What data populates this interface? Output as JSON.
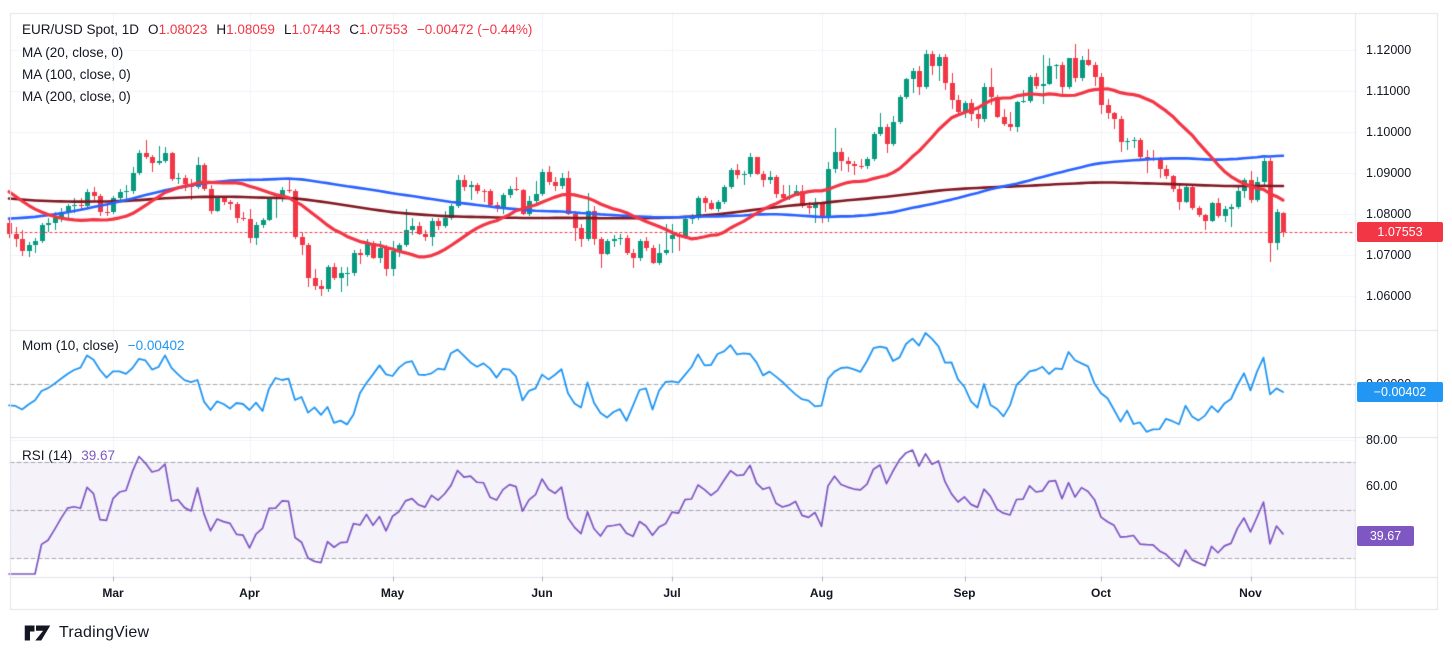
{
  "legend": {
    "title": "EUR/USD Spot, 1D",
    "ohlc": [
      {
        "k": "O",
        "v": "1.08023"
      },
      {
        "k": "H",
        "v": "1.08059"
      },
      {
        "k": "L",
        "v": "1.07443"
      },
      {
        "k": "C",
        "v": "1.07553"
      }
    ],
    "change": "−0.00472 (−0.44%)",
    "ma_rows": [
      "MA (20, close, 0)",
      "MA (100, close, 0)",
      "MA (200, close, 0)"
    ]
  },
  "mom_pane": {
    "label": "Mom (10, close)",
    "value": "−0.00402",
    "axis_zero_label": "0.00000",
    "badge": "−0.00402"
  },
  "rsi_pane": {
    "label": "RSI (14)",
    "value": "39.67",
    "badge": "39.67",
    "axis_labels": [
      {
        "text": "80.00",
        "value": 80
      },
      {
        "text": "60.00",
        "value": 60
      }
    ]
  },
  "price_axis": {
    "labels": [
      {
        "text": "1.12000",
        "value": 1.12
      },
      {
        "text": "1.11000",
        "value": 1.11
      },
      {
        "text": "1.10000",
        "value": 1.1
      },
      {
        "text": "1.09000",
        "value": 1.09
      },
      {
        "text": "1.08000",
        "value": 1.08
      },
      {
        "text": "1.07000",
        "value": 1.07
      },
      {
        "text": "1.06000",
        "value": 1.06
      }
    ],
    "last_price_badge": "1.07553",
    "last_price": 1.07553
  },
  "time_axis": {
    "months": [
      {
        "label": "Mar",
        "index": 16
      },
      {
        "label": "Apr",
        "index": 37
      },
      {
        "label": "May",
        "index": 59
      },
      {
        "label": "Jun",
        "index": 82
      },
      {
        "label": "Jul",
        "index": 102
      },
      {
        "label": "Aug",
        "index": 125
      },
      {
        "label": "Sep",
        "index": 147
      },
      {
        "label": "Oct",
        "index": 168
      },
      {
        "label": "Nov",
        "index": 191
      }
    ]
  },
  "watermark": {
    "text": "TradingView"
  },
  "colors": {
    "up": "#089981",
    "down": "#f23645",
    "ma20": "#f23645",
    "ma100": "#2962ff",
    "ma200": "#801922",
    "mom": "#2196f3",
    "rsi": "#7e57c2",
    "rsi_band": "rgba(126,87,194,0.08)",
    "grid": "#f0f3fa",
    "border": "#e0e3eb",
    "dashed": "#787b86",
    "text": "#131722",
    "badge_price": "#f23645",
    "badge_mom": "#2196f3",
    "badge_rsi": "#7e57c2"
  },
  "chart_data": {
    "type": "candlestick",
    "symbol": "EUR/USD Spot",
    "interval": "1D",
    "last_bar": {
      "open": 1.08023,
      "high": 1.08059,
      "low": 1.07443,
      "close": 1.07553,
      "change": -0.00472,
      "change_pct": -0.44
    },
    "indicators": {
      "sma_periods": [
        20,
        100,
        200
      ],
      "momentum_period": 10,
      "rsi_period": 14
    },
    "rsi_guides": [
      70,
      50,
      30
    ],
    "rsi_gridlines": [
      80,
      60,
      40
    ],
    "price_gridlines": [
      1.06,
      1.07,
      1.08,
      1.09,
      1.1,
      1.11,
      1.12
    ],
    "seed_anchors": [
      {
        "c": 1.1,
        "d": 0
      },
      {
        "c": 1.07,
        "d": 21
      },
      {
        "c": 1.091,
        "d": 21
      },
      {
        "c": 1.122,
        "d": 12
      },
      {
        "c": 1.0995,
        "d": 9
      },
      {
        "c": 1.084,
        "d": 22
      },
      {
        "c": 1.0575,
        "d": 21
      },
      {
        "c": 1.048,
        "d": 10
      },
      {
        "c": 1.06,
        "d": 12
      },
      {
        "c": 1.089,
        "d": 21
      },
      {
        "c": 1.106,
        "d": 22
      },
      {
        "c": 1.0816,
        "d": 23
      },
      {
        "c": 1.077,
        "d": 5
      }
    ],
    "candles": [
      [
        1.0778,
        1.0792,
        1.0742,
        1.0752
      ],
      [
        1.0752,
        1.0768,
        1.072,
        1.0738
      ],
      [
        1.0738,
        1.0762,
        1.0698,
        1.071
      ],
      [
        1.071,
        1.0731,
        1.0695,
        1.0724
      ],
      [
        1.0724,
        1.0742,
        1.0705,
        1.0735
      ],
      [
        1.0735,
        1.0777,
        1.073,
        1.0772
      ],
      [
        1.0772,
        1.079,
        1.0755,
        1.0777
      ],
      [
        1.0777,
        1.0805,
        1.0762,
        1.079
      ],
      [
        1.079,
        1.0815,
        1.078,
        1.0805
      ],
      [
        1.0805,
        1.0825,
        1.079,
        1.082
      ],
      [
        1.082,
        1.0839,
        1.0803,
        1.0822
      ],
      [
        1.0822,
        1.084,
        1.081,
        1.082
      ],
      [
        1.082,
        1.086,
        1.0815,
        1.0853
      ],
      [
        1.0853,
        1.0866,
        1.083,
        1.0845
      ],
      [
        1.0845,
        1.085,
        1.0795,
        1.0805
      ],
      [
        1.0805,
        1.0826,
        1.0796,
        1.0804
      ],
      [
        1.0804,
        1.0845,
        1.08,
        1.084
      ],
      [
        1.084,
        1.086,
        1.0832,
        1.0853
      ],
      [
        1.0853,
        1.087,
        1.0837,
        1.0856
      ],
      [
        1.0856,
        1.0915,
        1.085,
        1.09
      ],
      [
        1.09,
        1.0956,
        1.0895,
        1.0948
      ],
      [
        1.0948,
        1.0981,
        1.0935,
        1.0938
      ],
      [
        1.0938,
        1.0945,
        1.0903,
        1.0925
      ],
      [
        1.0925,
        1.0965,
        1.092,
        1.093
      ],
      [
        1.093,
        1.0964,
        1.0925,
        1.0948
      ],
      [
        1.0948,
        1.0952,
        1.088,
        1.0885
      ],
      [
        1.0885,
        1.09,
        1.0872,
        1.0888
      ],
      [
        1.0888,
        1.0895,
        1.0856,
        1.0872
      ],
      [
        1.0872,
        1.0885,
        1.0835,
        1.0865
      ],
      [
        1.0865,
        1.094,
        1.086,
        1.092
      ],
      [
        1.092,
        1.0925,
        1.0855,
        1.086
      ],
      [
        1.086,
        1.087,
        1.08,
        1.0808
      ],
      [
        1.0808,
        1.0845,
        1.0805,
        1.0838
      ],
      [
        1.0838,
        1.0842,
        1.0823,
        1.083
      ],
      [
        1.083,
        1.0835,
        1.081,
        1.0825
      ],
      [
        1.0825,
        1.083,
        1.0778,
        1.079
      ],
      [
        1.079,
        1.0805,
        1.0783,
        1.0788
      ],
      [
        1.0788,
        1.0812,
        1.073,
        1.0742
      ],
      [
        1.0742,
        1.078,
        1.0725,
        1.0772
      ],
      [
        1.0772,
        1.079,
        1.0765,
        1.0785
      ],
      [
        1.0785,
        1.084,
        1.0783,
        1.0837
      ],
      [
        1.0837,
        1.0845,
        1.079,
        1.0838
      ],
      [
        1.0838,
        1.0865,
        1.083,
        1.0858
      ],
      [
        1.0858,
        1.0885,
        1.0852,
        1.0857
      ],
      [
        1.0857,
        1.086,
        1.074,
        1.0745
      ],
      [
        1.0745,
        1.0755,
        1.0699,
        1.0725
      ],
      [
        1.0725,
        1.073,
        1.0622,
        1.0645
      ],
      [
        1.0645,
        1.0665,
        1.0615,
        1.0625
      ],
      [
        1.0625,
        1.064,
        1.0601,
        1.0618
      ],
      [
        1.0618,
        1.0675,
        1.061,
        1.067
      ],
      [
        1.067,
        1.068,
        1.064,
        1.0643
      ],
      [
        1.0643,
        1.067,
        1.061,
        1.0655
      ],
      [
        1.0655,
        1.067,
        1.0624,
        1.0656
      ],
      [
        1.0656,
        1.0711,
        1.065,
        1.0705
      ],
      [
        1.0705,
        1.0715,
        1.0678,
        1.07
      ],
      [
        1.07,
        1.074,
        1.0695,
        1.073
      ],
      [
        1.073,
        1.0735,
        1.069,
        1.0693
      ],
      [
        1.0693,
        1.0735,
        1.068,
        1.0718
      ],
      [
        1.0718,
        1.0725,
        1.065,
        1.0666
      ],
      [
        1.0666,
        1.0735,
        1.065,
        1.071
      ],
      [
        1.071,
        1.073,
        1.0695,
        1.0725
      ],
      [
        1.0725,
        1.0812,
        1.072,
        1.0762
      ],
      [
        1.0762,
        1.079,
        1.075,
        1.077
      ],
      [
        1.077,
        1.078,
        1.0748,
        1.0752
      ],
      [
        1.0752,
        1.076,
        1.0735,
        1.0745
      ],
      [
        1.0745,
        1.079,
        1.0723,
        1.0783
      ],
      [
        1.0783,
        1.079,
        1.076,
        1.077
      ],
      [
        1.077,
        1.0807,
        1.0765,
        1.079
      ],
      [
        1.079,
        1.0825,
        1.0785,
        1.082
      ],
      [
        1.082,
        1.0895,
        1.0815,
        1.0882
      ],
      [
        1.0882,
        1.0895,
        1.0855,
        1.0866
      ],
      [
        1.0866,
        1.088,
        1.0835,
        1.087
      ],
      [
        1.087,
        1.0875,
        1.085,
        1.0856
      ],
      [
        1.0856,
        1.086,
        1.083,
        1.0855
      ],
      [
        1.0855,
        1.086,
        1.0815,
        1.0822
      ],
      [
        1.0822,
        1.083,
        1.0805,
        1.0815
      ],
      [
        1.0815,
        1.0852,
        1.08,
        1.0846
      ],
      [
        1.0846,
        1.0868,
        1.084,
        1.0862
      ],
      [
        1.0862,
        1.089,
        1.0855,
        1.0858
      ],
      [
        1.0858,
        1.086,
        1.0798,
        1.08
      ],
      [
        1.08,
        1.0845,
        1.0795,
        1.0832
      ],
      [
        1.0832,
        1.088,
        1.0825,
        1.0848
      ],
      [
        1.0848,
        1.091,
        1.0845,
        1.0903
      ],
      [
        1.0903,
        1.0916,
        1.087,
        1.0878
      ],
      [
        1.0878,
        1.089,
        1.0855,
        1.0868
      ],
      [
        1.0868,
        1.09,
        1.086,
        1.0889
      ],
      [
        1.0889,
        1.0905,
        1.0798,
        1.08
      ],
      [
        1.08,
        1.0808,
        1.0733,
        1.0765
      ],
      [
        1.0765,
        1.0775,
        1.0719,
        1.074
      ],
      [
        1.074,
        1.0852,
        1.0735,
        1.0808
      ],
      [
        1.0808,
        1.082,
        1.0725,
        1.0738
      ],
      [
        1.0738,
        1.0745,
        1.0668,
        1.0703
      ],
      [
        1.0703,
        1.074,
        1.07,
        1.0735
      ],
      [
        1.0735,
        1.075,
        1.072,
        1.0738
      ],
      [
        1.0738,
        1.0752,
        1.0725,
        1.0742
      ],
      [
        1.0742,
        1.075,
        1.07,
        1.0705
      ],
      [
        1.0705,
        1.0715,
        1.0668,
        1.0692
      ],
      [
        1.0692,
        1.074,
        1.0685,
        1.0735
      ],
      [
        1.0735,
        1.0745,
        1.071,
        1.0718
      ],
      [
        1.0718,
        1.0725,
        1.0677,
        1.068
      ],
      [
        1.068,
        1.0726,
        1.0675,
        1.0704
      ],
      [
        1.0704,
        1.0775,
        1.07,
        1.0713
      ],
      [
        1.074,
        1.0776,
        1.0705,
        1.0748
      ],
      [
        1.0748,
        1.0755,
        1.071,
        1.0745
      ],
      [
        1.0745,
        1.0795,
        1.074,
        1.0788
      ],
      [
        1.0788,
        1.08,
        1.0775,
        1.079
      ],
      [
        1.079,
        1.0845,
        1.0785,
        1.084
      ],
      [
        1.084,
        1.0845,
        1.0805,
        1.0828
      ],
      [
        1.0828,
        1.0835,
        1.081,
        1.0813
      ],
      [
        1.0813,
        1.0835,
        1.0805,
        1.083
      ],
      [
        1.083,
        1.087,
        1.0825,
        1.0867
      ],
      [
        1.0867,
        1.0911,
        1.086,
        1.0907
      ],
      [
        1.0907,
        1.0922,
        1.0885,
        1.0896
      ],
      [
        1.0896,
        1.0905,
        1.087,
        1.0898
      ],
      [
        1.0898,
        1.0948,
        1.089,
        1.0938
      ],
      [
        1.0938,
        1.094,
        1.0895,
        1.0898
      ],
      [
        1.0898,
        1.0905,
        1.0865,
        1.0883
      ],
      [
        1.0883,
        1.0905,
        1.0872,
        1.089
      ],
      [
        1.089,
        1.0895,
        1.084,
        1.085
      ],
      [
        1.085,
        1.087,
        1.0837,
        1.084
      ],
      [
        1.084,
        1.087,
        1.0835,
        1.0845
      ],
      [
        1.0845,
        1.087,
        1.0843,
        1.0855
      ],
      [
        1.0855,
        1.087,
        1.0815,
        1.082
      ],
      [
        1.082,
        1.083,
        1.08,
        1.0815
      ],
      [
        1.0815,
        1.084,
        1.0777,
        1.0826
      ],
      [
        1.0826,
        1.083,
        1.0777,
        1.079
      ],
      [
        1.079,
        1.0927,
        1.078,
        1.091
      ],
      [
        1.091,
        1.1009,
        1.09,
        1.0952
      ],
      [
        1.0952,
        1.096,
        1.0905,
        1.093
      ],
      [
        1.093,
        1.094,
        1.0903,
        1.0923
      ],
      [
        1.0923,
        1.093,
        1.0895,
        1.0918
      ],
      [
        1.0918,
        1.0935,
        1.091,
        1.0916
      ],
      [
        1.0916,
        1.094,
        1.091,
        1.0935
      ],
      [
        1.0935,
        1.1,
        1.093,
        1.0994
      ],
      [
        1.0994,
        1.1047,
        1.099,
        1.1013
      ],
      [
        1.1013,
        1.102,
        1.095,
        1.097
      ],
      [
        1.097,
        1.104,
        1.0965,
        1.1025
      ],
      [
        1.1025,
        1.109,
        1.102,
        1.1085
      ],
      [
        1.1085,
        1.1132,
        1.108,
        1.113
      ],
      [
        1.113,
        1.1155,
        1.1095,
        1.115
      ],
      [
        1.115,
        1.116,
        1.109,
        1.111
      ],
      [
        1.111,
        1.1201,
        1.1105,
        1.119
      ],
      [
        1.119,
        1.1198,
        1.114,
        1.1161
      ],
      [
        1.1161,
        1.119,
        1.1125,
        1.1182
      ],
      [
        1.1182,
        1.119,
        1.1103,
        1.112
      ],
      [
        1.112,
        1.1145,
        1.1055,
        1.1078
      ],
      [
        1.1078,
        1.109,
        1.1042,
        1.1048
      ],
      [
        1.1048,
        1.1075,
        1.1035,
        1.107
      ],
      [
        1.107,
        1.108,
        1.1026,
        1.1043
      ],
      [
        1.1043,
        1.1055,
        1.101,
        1.1032
      ],
      [
        1.1032,
        1.112,
        1.1025,
        1.111
      ],
      [
        1.111,
        1.1155,
        1.1065,
        1.1085
      ],
      [
        1.1085,
        1.109,
        1.1035,
        1.1036
      ],
      [
        1.1036,
        1.1055,
        1.1015,
        1.102
      ],
      [
        1.102,
        1.105,
        1.1002,
        1.1013
      ],
      [
        1.1013,
        1.1075,
        1.1,
        1.1073
      ],
      [
        1.1073,
        1.1102,
        1.107,
        1.1075
      ],
      [
        1.1075,
        1.1138,
        1.107,
        1.1133
      ],
      [
        1.1133,
        1.1145,
        1.1105,
        1.1113
      ],
      [
        1.1113,
        1.1189,
        1.1069,
        1.1118
      ],
      [
        1.1118,
        1.118,
        1.1115,
        1.116
      ],
      [
        1.116,
        1.1165,
        1.113,
        1.1163
      ],
      [
        1.1163,
        1.117,
        1.1085,
        1.111
      ],
      [
        1.111,
        1.118,
        1.1105,
        1.118
      ],
      [
        1.118,
        1.1214,
        1.1122,
        1.1132
      ],
      [
        1.1132,
        1.1185,
        1.1125,
        1.1176
      ],
      [
        1.1176,
        1.1202,
        1.116,
        1.1163
      ],
      [
        1.1163,
        1.117,
        1.1113,
        1.1135
      ],
      [
        1.1135,
        1.1143,
        1.1045,
        1.1067
      ],
      [
        1.1067,
        1.108,
        1.1032,
        1.1047
      ],
      [
        1.1047,
        1.105,
        1.1008,
        1.1031
      ],
      [
        1.1031,
        1.104,
        1.0951,
        1.0975
      ],
      [
        1.0975,
        1.0985,
        1.0955,
        1.0977
      ],
      [
        1.0977,
        1.0988,
        1.096,
        1.098
      ],
      [
        1.098,
        1.0985,
        1.0935,
        1.094
      ],
      [
        1.094,
        1.0955,
        1.09,
        1.0937
      ],
      [
        1.0937,
        1.0955,
        1.093,
        1.0936
      ],
      [
        1.0936,
        1.094,
        1.0888,
        1.0909
      ],
      [
        1.0909,
        1.092,
        1.0885,
        1.0893
      ],
      [
        1.0893,
        1.0895,
        1.0853,
        1.0861
      ],
      [
        1.0861,
        1.0875,
        1.081,
        1.083
      ],
      [
        1.083,
        1.087,
        1.0826,
        1.0866
      ],
      [
        1.0866,
        1.0872,
        1.081,
        1.0815
      ],
      [
        1.0815,
        1.082,
        1.0792,
        1.0798
      ],
      [
        1.0798,
        1.08,
        1.0761,
        1.0782
      ],
      [
        1.0782,
        1.083,
        1.078,
        1.0826
      ],
      [
        1.0826,
        1.0839,
        1.079,
        1.07955
      ],
      [
        1.07955,
        1.082,
        1.078,
        1.0812
      ],
      [
        1.0812,
        1.0825,
        1.0768,
        1.0818
      ],
      [
        1.0818,
        1.0871,
        1.0812,
        1.0856
      ],
      [
        1.0856,
        1.0887,
        1.084,
        1.0884
      ],
      [
        1.0884,
        1.0905,
        1.0828,
        1.0834
      ],
      [
        1.0834,
        1.089,
        1.083,
        1.0877
      ],
      [
        1.0877,
        1.0937,
        1.087,
        1.093
      ],
      [
        1.093,
        1.0937,
        1.0683,
        1.073
      ],
      [
        1.073,
        1.0813,
        1.0712,
        1.0804
      ],
      [
        1.08023,
        1.08059,
        1.07443,
        1.07553
      ]
    ]
  }
}
